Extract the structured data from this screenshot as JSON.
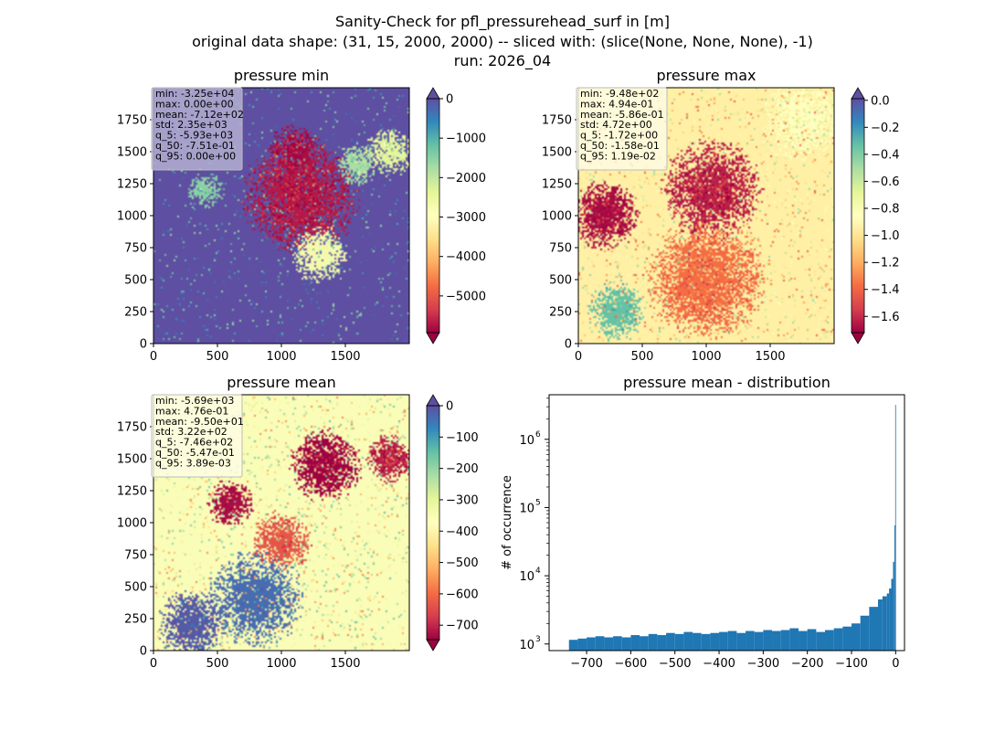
{
  "figure": {
    "title_lines": [
      "Sanity-Check for pfl_pressurehead_surf in [m]",
      "original data shape: (31, 15, 2000, 2000) -- sliced with: (slice(None, None, None), -1)",
      "run: 2026_04"
    ]
  },
  "colors": {
    "spectral": [
      "#9e0142",
      "#d53e4f",
      "#f46d43",
      "#fdae61",
      "#fee08b",
      "#ffffbf",
      "#e6f598",
      "#abdda4",
      "#66c2a5",
      "#3288bd",
      "#5e4fa2"
    ],
    "histogram_bar": "#1f77b4"
  },
  "panels": [
    {
      "id": "min",
      "title": "pressure min",
      "xticks": [
        "0",
        "500",
        "1000",
        "1500"
      ],
      "yticks": [
        "0",
        "250",
        "500",
        "750",
        "1000",
        "1250",
        "1500",
        "1750"
      ],
      "stats": [
        "min: -3.25e+04",
        "max: 0.00e+00",
        "mean: -7.12e+02",
        "std: 2.35e+03",
        "q_5: -5.93e+03",
        "q_50: -7.51e-01",
        "q_95: 0.00e+00"
      ],
      "stats_bg": "#b8b4d4",
      "colorbar": {
        "vmin": -5930,
        "vmax": 0,
        "ticks": [
          "0",
          "−1000",
          "−2000",
          "−3000",
          "−4000",
          "−5000"
        ],
        "tick_values": [
          0,
          -1000,
          -2000,
          -3000,
          -4000,
          -5000
        ],
        "extend_top": true,
        "extend_bottom": true
      },
      "map": {
        "base": 1.0,
        "blobs": [
          {
            "cx": 1150,
            "cy": 1150,
            "r": 480,
            "v": 0.04,
            "d": 0.42
          },
          {
            "cx": 1100,
            "cy": 1500,
            "r": 230,
            "v": 0.02,
            "d": 0.62
          },
          {
            "cx": 1600,
            "cy": 1400,
            "r": 180,
            "v": 0.7,
            "d": 0.35
          },
          {
            "cx": 1850,
            "cy": 1500,
            "r": 200,
            "v": 0.6,
            "d": 0.45
          },
          {
            "cx": 400,
            "cy": 1200,
            "r": 150,
            "v": 0.75,
            "d": 0.25
          },
          {
            "cx": 1300,
            "cy": 700,
            "r": 250,
            "v": 0.55,
            "d": 0.18
          }
        ]
      }
    },
    {
      "id": "max",
      "title": "pressure max",
      "xticks": [
        "0",
        "500",
        "1000",
        "1500"
      ],
      "yticks": [
        "0",
        "250",
        "500",
        "750",
        "1000",
        "1250",
        "1500",
        "1750"
      ],
      "stats": [
        "min: -9.48e+02",
        "max: 4.94e-01",
        "mean: -5.86e-01",
        "std: 4.72e+00",
        "q_5: -1.72e+00",
        "q_50: -1.58e-01",
        "q_95: 1.19e-02"
      ],
      "stats_bg": "#fefde6",
      "colorbar": {
        "vmin": -1.72,
        "vmax": 0.0119,
        "ticks": [
          "0.0",
          "−0.2",
          "−0.4",
          "−0.6",
          "−0.8",
          "−1.0",
          "−1.2",
          "−1.4",
          "−1.6"
        ],
        "tick_values": [
          0,
          -0.2,
          -0.4,
          -0.6,
          -0.8,
          -1.0,
          -1.2,
          -1.4,
          -1.6
        ],
        "extend_top": true,
        "extend_bottom": true
      },
      "map": {
        "base": 0.45,
        "blobs": [
          {
            "cx": 1750,
            "cy": 1750,
            "r": 350,
            "v": 0.5,
            "d": 0.3
          },
          {
            "cx": 250,
            "cy": 1750,
            "r": 300,
            "v": 0.48,
            "d": 0.2
          },
          {
            "cx": 1050,
            "cy": 1200,
            "r": 420,
            "v": 0.05,
            "d": 0.5
          },
          {
            "cx": 200,
            "cy": 1000,
            "r": 300,
            "v": 0.02,
            "d": 0.55
          },
          {
            "cx": 1000,
            "cy": 500,
            "r": 500,
            "v": 0.2,
            "d": 0.4
          },
          {
            "cx": 1700,
            "cy": 1050,
            "r": 250,
            "v": 0.45,
            "d": 0.1
          },
          {
            "cx": 300,
            "cy": 250,
            "r": 250,
            "v": 0.8,
            "d": 0.15
          }
        ]
      }
    },
    {
      "id": "mean",
      "title": "pressure mean",
      "xticks": [
        "0",
        "500",
        "1000",
        "1500"
      ],
      "yticks": [
        "0",
        "250",
        "500",
        "750",
        "1000",
        "1250",
        "1500",
        "1750"
      ],
      "stats": [
        "min: -5.69e+03",
        "max: 4.76e-01",
        "mean: -9.50e+01",
        "std: 3.22e+02",
        "q_5: -7.46e+02",
        "q_50: -5.47e-01",
        "q_95: 3.89e-03"
      ],
      "stats_bg": "#fefde6",
      "colorbar": {
        "vmin": -746,
        "vmax": 0.0039,
        "ticks": [
          "0",
          "−100",
          "−200",
          "−300",
          "−400",
          "−500",
          "−600",
          "−700"
        ],
        "tick_values": [
          0,
          -100,
          -200,
          -300,
          -400,
          -500,
          -600,
          -700
        ],
        "extend_top": true,
        "extend_bottom": true
      },
      "map": {
        "base": 0.52,
        "blobs": [
          {
            "cx": 1350,
            "cy": 1450,
            "r": 300,
            "v": 0.0,
            "d": 0.62
          },
          {
            "cx": 1850,
            "cy": 1500,
            "r": 200,
            "v": 0.05,
            "d": 0.5
          },
          {
            "cx": 1000,
            "cy": 850,
            "r": 250,
            "v": 0.15,
            "d": 0.3
          },
          {
            "cx": 600,
            "cy": 1150,
            "r": 200,
            "v": 0.02,
            "d": 0.25
          },
          {
            "cx": 300,
            "cy": 200,
            "r": 300,
            "v": 0.98,
            "d": 0.25
          },
          {
            "cx": 800,
            "cy": 400,
            "r": 400,
            "v": 0.95,
            "d": 0.12
          }
        ]
      }
    }
  ],
  "histogram": {
    "title": "pressure mean - distribution",
    "ylabel": "# of occurrence",
    "xticks": [
      "−700",
      "−600",
      "−500",
      "−400",
      "−300",
      "−200",
      "−100",
      "0"
    ],
    "xtick_values": [
      -700,
      -600,
      -500,
      -400,
      -300,
      -200,
      -100,
      0
    ],
    "yticks": [
      "10",
      "10",
      "10",
      "10"
    ],
    "ytick_exponents": [
      "3",
      "4",
      "5",
      "6"
    ]
  },
  "chart_data": [
    {
      "type": "heatmap",
      "title": "pressure min",
      "xlim": [
        0,
        2000
      ],
      "ylim": [
        0,
        2000
      ],
      "colormap": "Spectral",
      "color_range": [
        -5930,
        0
      ]
    },
    {
      "type": "heatmap",
      "title": "pressure max",
      "xlim": [
        0,
        2000
      ],
      "ylim": [
        0,
        2000
      ],
      "colormap": "Spectral",
      "color_range": [
        -1.72,
        0.0119
      ]
    },
    {
      "type": "heatmap",
      "title": "pressure mean",
      "xlim": [
        0,
        2000
      ],
      "ylim": [
        0,
        2000
      ],
      "colormap": "Spectral",
      "color_range": [
        -746,
        0.0039
      ]
    },
    {
      "type": "bar",
      "title": "pressure mean - distribution",
      "xlabel": "",
      "ylabel": "# of occurrence",
      "yscale": "log",
      "xlim": [
        -785,
        20
      ],
      "ylim": [
        800,
        4500000
      ],
      "series": [
        {
          "x": [
            -740,
            -720,
            -700,
            -680,
            -660,
            -640,
            -620,
            -600,
            -580,
            -560,
            -540,
            -520,
            -500,
            -480,
            -460,
            -440,
            -420,
            -400,
            -380,
            -360,
            -340,
            -320,
            -300,
            -280,
            -260,
            -240,
            -220,
            -200,
            -180,
            -160,
            -140,
            -120,
            -100,
            -80,
            -60,
            -40,
            -30,
            -20,
            -15,
            -10,
            -6,
            -3,
            -1
          ],
          "values": [
            1150,
            1200,
            1250,
            1300,
            1250,
            1300,
            1250,
            1350,
            1300,
            1400,
            1350,
            1450,
            1400,
            1500,
            1450,
            1400,
            1450,
            1500,
            1550,
            1450,
            1550,
            1500,
            1600,
            1550,
            1600,
            1700,
            1550,
            1650,
            1500,
            1600,
            1700,
            1800,
            2000,
            2600,
            3500,
            4500,
            5000,
            5500,
            6500,
            9000,
            16000,
            55000,
            3200000
          ]
        }
      ]
    }
  ]
}
